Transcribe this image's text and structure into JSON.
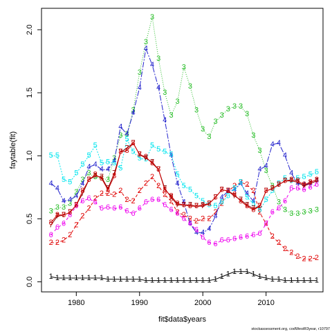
{
  "chart_data": {
    "type": "line",
    "xlabel": "fit$data$years",
    "ylabel": "faytable(fit)",
    "xlim": [
      1974.5,
      2019
    ],
    "ylim": [
      -0.08,
      2.17
    ],
    "x_ticks": [
      "1980",
      "1990",
      "2000",
      "2010"
    ],
    "y_ticks": [
      "0.0",
      "0.5",
      "1.0",
      "1.5",
      "2.0"
    ],
    "x": [
      1976,
      1977,
      1978,
      1979,
      1980,
      1981,
      1982,
      1983,
      1984,
      1985,
      1986,
      1987,
      1988,
      1989,
      1990,
      1991,
      1992,
      1993,
      1994,
      1995,
      1996,
      1997,
      1998,
      1999,
      2000,
      2001,
      2002,
      2003,
      2004,
      2005,
      2006,
      2007,
      2008,
      2009,
      2010,
      2011,
      2012,
      2013,
      2014,
      2015,
      2016,
      2017,
      2018
    ],
    "series": [
      {
        "symbol": "1",
        "color": "#000000",
        "dash": "",
        "values": [
          0.04,
          0.03,
          0.03,
          0.03,
          0.03,
          0.03,
          0.03,
          0.03,
          0.03,
          0.02,
          0.02,
          0.02,
          0.02,
          0.02,
          0.02,
          0.01,
          0.01,
          0.01,
          0.01,
          0.01,
          0.01,
          0.01,
          0.01,
          0.01,
          0.01,
          0.01,
          0.02,
          0.04,
          0.06,
          0.08,
          0.08,
          0.08,
          0.06,
          0.04,
          0.03,
          0.02,
          0.02,
          0.01,
          0.01,
          0.01,
          0.01,
          0.01,
          0.01
        ]
      },
      {
        "symbol": "2",
        "color": "#df0000",
        "dash": "4,3",
        "values": [
          0.31,
          0.31,
          0.33,
          0.37,
          0.45,
          0.52,
          0.58,
          0.66,
          0.7,
          0.7,
          0.69,
          0.72,
          0.65,
          0.64,
          0.72,
          0.78,
          0.83,
          0.76,
          0.69,
          0.64,
          0.55,
          0.53,
          0.5,
          0.48,
          0.5,
          0.5,
          0.55,
          0.62,
          0.72,
          0.76,
          0.79,
          0.77,
          0.72,
          0.55,
          0.46,
          0.36,
          0.31,
          0.26,
          0.23,
          0.2,
          0.18,
          0.18,
          0.19
        ]
      },
      {
        "symbol": "3",
        "color": "#22bb22",
        "dash": "1,2",
        "values": [
          0.56,
          0.59,
          0.59,
          0.62,
          0.71,
          0.81,
          0.86,
          0.83,
          0.82,
          0.81,
          0.98,
          1.16,
          1.17,
          1.36,
          1.66,
          1.9,
          2.1,
          1.77,
          1.5,
          1.32,
          1.43,
          1.7,
          1.55,
          1.36,
          1.21,
          1.15,
          1.27,
          1.32,
          1.37,
          1.39,
          1.39,
          1.33,
          1.16,
          1.04,
          0.88,
          0.76,
          0.63,
          0.57,
          0.54,
          0.54,
          0.55,
          0.56,
          0.57
        ]
      },
      {
        "symbol": "4",
        "color": "#2222cc",
        "dash": "8,2,2,2",
        "values": [
          0.78,
          0.74,
          0.64,
          0.65,
          0.68,
          0.78,
          0.91,
          0.93,
          0.89,
          0.89,
          0.96,
          1.23,
          1.17,
          1.34,
          1.54,
          1.85,
          1.72,
          1.54,
          1.28,
          1.0,
          0.78,
          0.63,
          0.46,
          0.39,
          0.39,
          0.42,
          0.52,
          0.67,
          0.72,
          0.73,
          0.78,
          0.7,
          0.64,
          0.89,
          0.92,
          1.09,
          1.1,
          1.0,
          0.86,
          0.78,
          0.77,
          0.78,
          0.8
        ]
      },
      {
        "symbol": "5",
        "color": "#00e5ee",
        "dash": "2,2",
        "values": [
          1.0,
          1.0,
          0.81,
          0.79,
          0.86,
          0.93,
          1.0,
          1.08,
          0.94,
          0.95,
          0.94,
          0.9,
          1.13,
          1.03,
          0.98,
          0.97,
          1.08,
          1.05,
          1.03,
          1.01,
          0.85,
          0.76,
          0.73,
          0.68,
          0.64,
          0.61,
          0.6,
          0.63,
          0.68,
          0.74,
          0.79,
          0.67,
          0.62,
          0.57,
          0.65,
          0.72,
          0.78,
          0.82,
          0.8,
          0.82,
          0.83,
          0.85,
          0.87
        ]
      },
      {
        "symbol": "6",
        "color": "#ee00ee",
        "dash": "4,4",
        "values": [
          0.37,
          0.43,
          0.46,
          0.53,
          0.6,
          0.64,
          0.66,
          0.63,
          0.58,
          0.59,
          0.58,
          0.59,
          0.56,
          0.54,
          0.58,
          0.63,
          0.65,
          0.65,
          0.61,
          0.57,
          0.54,
          0.5,
          0.46,
          0.41,
          0.35,
          0.31,
          0.3,
          0.33,
          0.33,
          0.34,
          0.35,
          0.36,
          0.37,
          0.38,
          0.46,
          0.55,
          0.58,
          0.64,
          0.74,
          0.74,
          0.73,
          0.75,
          0.77
        ]
      },
      {
        "symbol": "7",
        "color": "#880000",
        "dash": "",
        "values": [
          0.45,
          0.52,
          0.53,
          0.55,
          0.61,
          0.7,
          0.81,
          0.84,
          0.83,
          0.74,
          0.86,
          1.03,
          1.06,
          1.1,
          1.01,
          0.98,
          0.95,
          0.89,
          0.74,
          0.67,
          0.61,
          0.61,
          0.61,
          0.6,
          0.6,
          0.62,
          0.67,
          0.73,
          0.72,
          0.68,
          0.65,
          0.61,
          0.58,
          0.6,
          0.72,
          0.74,
          0.77,
          0.8,
          0.8,
          0.79,
          0.76,
          0.78,
          0.8
        ]
      },
      {
        "symbol": "8",
        "color": "#cc0000",
        "dash": "",
        "values": [
          0.47,
          0.53,
          0.53,
          0.55,
          0.61,
          0.72,
          0.81,
          0.85,
          0.82,
          0.73,
          0.84,
          1.03,
          1.04,
          1.1,
          1.01,
          0.99,
          0.94,
          0.89,
          0.73,
          0.68,
          0.62,
          0.61,
          0.6,
          0.6,
          0.61,
          0.62,
          0.67,
          0.73,
          0.72,
          0.69,
          0.64,
          0.6,
          0.57,
          0.6,
          0.72,
          0.74,
          0.77,
          0.8,
          0.81,
          0.8,
          0.77,
          0.79,
          0.81
        ]
      }
    ]
  },
  "caption": "stockassessment.org, codWestR3year, r10797"
}
